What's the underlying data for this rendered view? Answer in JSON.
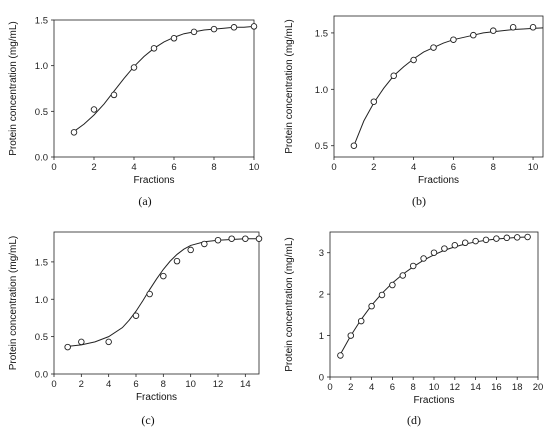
{
  "chart_data": [
    {
      "type": "scatter",
      "caption": "(a)",
      "xlabel": "Fractions",
      "ylabel": "Protein concentration (mg/mL)",
      "xlim": [
        0,
        10
      ],
      "ylim": [
        0,
        1.5
      ],
      "xticks": [
        0,
        2,
        4,
        6,
        8,
        10
      ],
      "yticks": [
        0.0,
        0.5,
        1.0,
        1.5
      ],
      "ytick_labels": [
        "0.0",
        "0.5",
        "1.0",
        "1.5"
      ],
      "points": {
        "x": [
          1,
          2,
          3,
          4,
          5,
          6,
          7,
          8,
          9,
          10
        ],
        "y": [
          0.27,
          0.52,
          0.68,
          0.98,
          1.19,
          1.3,
          1.37,
          1.4,
          1.42,
          1.43
        ]
      },
      "fit_curve": {
        "x": [
          1,
          1.5,
          2,
          2.5,
          3,
          3.5,
          4,
          4.5,
          5,
          5.5,
          6,
          6.5,
          7,
          7.5,
          8,
          8.5,
          9,
          9.5,
          10
        ],
        "y": [
          0.28,
          0.36,
          0.46,
          0.58,
          0.72,
          0.86,
          0.99,
          1.1,
          1.19,
          1.26,
          1.31,
          1.35,
          1.37,
          1.39,
          1.4,
          1.41,
          1.42,
          1.42,
          1.43
        ]
      }
    },
    {
      "type": "scatter",
      "caption": "(b)",
      "xlabel": "Fractions",
      "ylabel": "Protein concentration (mg/mL)",
      "xlim": [
        0,
        10.5
      ],
      "ylim": [
        0.4,
        1.65
      ],
      "xticks": [
        0,
        2,
        4,
        6,
        8,
        10
      ],
      "yticks": [
        0.5,
        1.0,
        1.5
      ],
      "ytick_labels": [
        "0.5",
        "1.0",
        "1.5"
      ],
      "points": {
        "x": [
          1,
          2,
          3,
          4,
          5,
          6,
          7,
          8,
          9,
          10
        ],
        "y": [
          0.5,
          0.89,
          1.12,
          1.26,
          1.37,
          1.44,
          1.48,
          1.52,
          1.55,
          1.55
        ]
      },
      "fit_curve": {
        "x": [
          1,
          1.5,
          2,
          2.5,
          3,
          3.5,
          4,
          4.5,
          5,
          5.5,
          6,
          6.5,
          7,
          7.5,
          8,
          8.5,
          9,
          9.5,
          10,
          10.5
        ],
        "y": [
          0.5,
          0.72,
          0.88,
          1.01,
          1.12,
          1.2,
          1.27,
          1.33,
          1.37,
          1.41,
          1.44,
          1.46,
          1.48,
          1.5,
          1.51,
          1.52,
          1.53,
          1.535,
          1.54,
          1.545
        ]
      }
    },
    {
      "type": "scatter",
      "caption": "(c)",
      "xlabel": "Fractions",
      "ylabel": "Protein concentration (mg/mL)",
      "xlim": [
        0,
        15
      ],
      "ylim": [
        0,
        1.9
      ],
      "xticks": [
        0,
        2,
        4,
        6,
        8,
        10,
        12,
        14
      ],
      "yticks": [
        0.0,
        0.5,
        1.0,
        1.5
      ],
      "ytick_labels": [
        "0.0",
        "0.5",
        "1.0",
        "1.5"
      ],
      "points": {
        "x": [
          1,
          2,
          4,
          6,
          7,
          8,
          9,
          10,
          11,
          12,
          13,
          14,
          15
        ],
        "y": [
          0.36,
          0.43,
          0.43,
          0.78,
          1.07,
          1.31,
          1.51,
          1.66,
          1.74,
          1.79,
          1.81,
          1.81,
          1.81
        ]
      },
      "fit_curve": {
        "x": [
          1,
          2,
          3,
          4,
          5,
          5.5,
          6,
          6.5,
          7,
          7.5,
          8,
          8.5,
          9,
          9.5,
          10,
          11,
          12,
          13,
          14,
          15
        ],
        "y": [
          0.37,
          0.39,
          0.43,
          0.5,
          0.62,
          0.72,
          0.84,
          0.98,
          1.13,
          1.27,
          1.4,
          1.51,
          1.6,
          1.67,
          1.72,
          1.77,
          1.79,
          1.8,
          1.81,
          1.81
        ]
      }
    },
    {
      "type": "scatter",
      "caption": "(d)",
      "xlabel": "Fractions",
      "ylabel": "Protein concentration (mg/mL)",
      "xlim": [
        0,
        20
      ],
      "ylim": [
        0,
        3.5
      ],
      "xticks": [
        0,
        2,
        4,
        6,
        8,
        10,
        12,
        14,
        16,
        18,
        20
      ],
      "yticks": [
        0,
        1,
        2,
        3
      ],
      "ytick_labels": [
        "0",
        "1",
        "2",
        "3"
      ],
      "points": {
        "x": [
          1,
          2,
          3,
          4,
          5,
          6,
          7,
          8,
          9,
          10,
          11,
          12,
          13,
          14,
          15,
          16,
          17,
          18,
          19
        ],
        "y": [
          0.52,
          1.0,
          1.35,
          1.71,
          1.98,
          2.22,
          2.45,
          2.68,
          2.86,
          3.0,
          3.1,
          3.18,
          3.24,
          3.28,
          3.31,
          3.34,
          3.36,
          3.37,
          3.38
        ]
      },
      "fit_curve": {
        "x": [
          1,
          2,
          3,
          4,
          5,
          6,
          7,
          8,
          9,
          10,
          11,
          12,
          13,
          14,
          15,
          16,
          17,
          18,
          19
        ],
        "y": [
          0.55,
          1.0,
          1.39,
          1.73,
          2.02,
          2.27,
          2.48,
          2.66,
          2.82,
          2.95,
          3.06,
          3.14,
          3.21,
          3.26,
          3.3,
          3.33,
          3.35,
          3.37,
          3.38
        ]
      }
    }
  ]
}
